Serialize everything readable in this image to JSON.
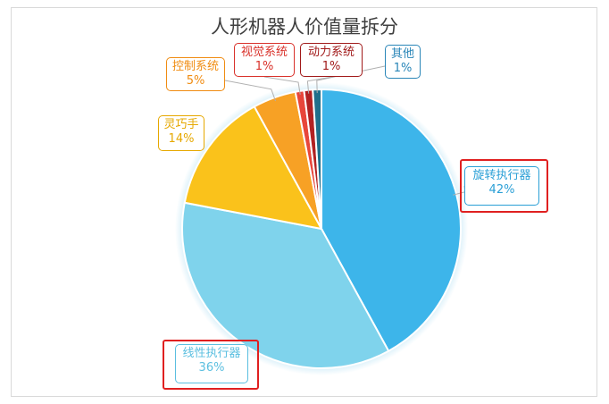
{
  "chart_data": {
    "type": "pie",
    "title": "人形机器人价值量拆分",
    "slices": [
      {
        "name": "旋转执行器",
        "value": 42,
        "label": "42%",
        "color": "#3db5ea",
        "label_color": "#2a9fd6"
      },
      {
        "name": "线性执行器",
        "value": 36,
        "label": "36%",
        "color": "#7fd3ec",
        "label_color": "#5bbfe0"
      },
      {
        "name": "灵巧手",
        "value": 14,
        "label": "14%",
        "color": "#fac21b",
        "label_color": "#e6a800"
      },
      {
        "name": "控制系统",
        "value": 5,
        "label": "5%",
        "color": "#f7a125",
        "label_color": "#f08c12"
      },
      {
        "name": "视觉系统",
        "value": 1,
        "label": "1%",
        "color": "#e8463a",
        "label_color": "#d9312a"
      },
      {
        "name": "动力系统",
        "value": 1,
        "label": "1%",
        "color": "#b22222",
        "label_color": "#a11a1a"
      },
      {
        "name": "其他",
        "value": 1,
        "label": "1%",
        "color": "#1f6f8b",
        "label_color": "#2a86b8"
      }
    ],
    "highlighted": [
      "旋转执行器",
      "线性执行器"
    ],
    "highlight_color": "#e02020"
  }
}
